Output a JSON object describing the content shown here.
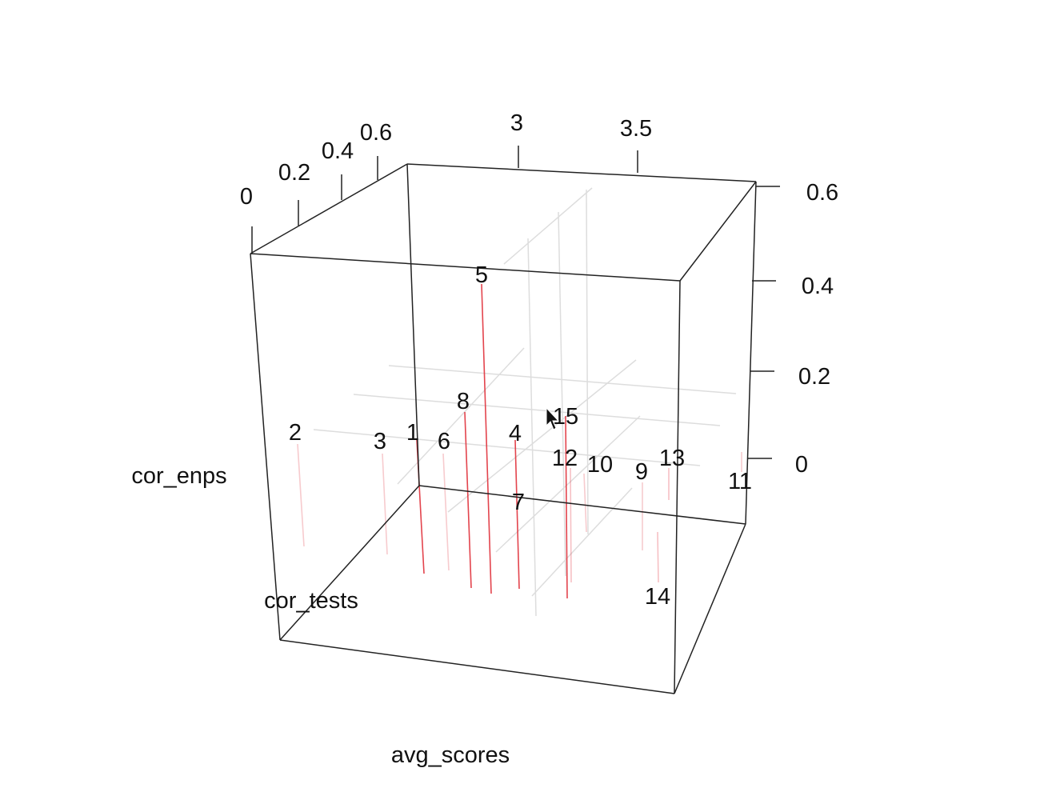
{
  "chart_data": {
    "type": "scatter3d",
    "title": "",
    "axes": {
      "x": {
        "label": "avg_scores",
        "ticks": [
          "3",
          "3.5"
        ]
      },
      "y": {
        "label": "cor_tests",
        "ticks": [
          "0",
          "0.2",
          "0.4",
          "0.6"
        ]
      },
      "z": {
        "label": "cor_enps",
        "ticks": [
          "0",
          "0.2",
          "0.4",
          "0.6"
        ]
      }
    },
    "grid": true,
    "drop_lines": true,
    "point_color": "#e0303a",
    "box_color": "#222222",
    "grid_color": "#dddddd",
    "points": [
      {
        "label": "1"
      },
      {
        "label": "2"
      },
      {
        "label": "3"
      },
      {
        "label": "4"
      },
      {
        "label": "5"
      },
      {
        "label": "6"
      },
      {
        "label": "7"
      },
      {
        "label": "8"
      },
      {
        "label": "9"
      },
      {
        "label": "10"
      },
      {
        "label": "11"
      },
      {
        "label": "12"
      },
      {
        "label": "13"
      },
      {
        "label": "14"
      },
      {
        "label": "15"
      }
    ]
  }
}
